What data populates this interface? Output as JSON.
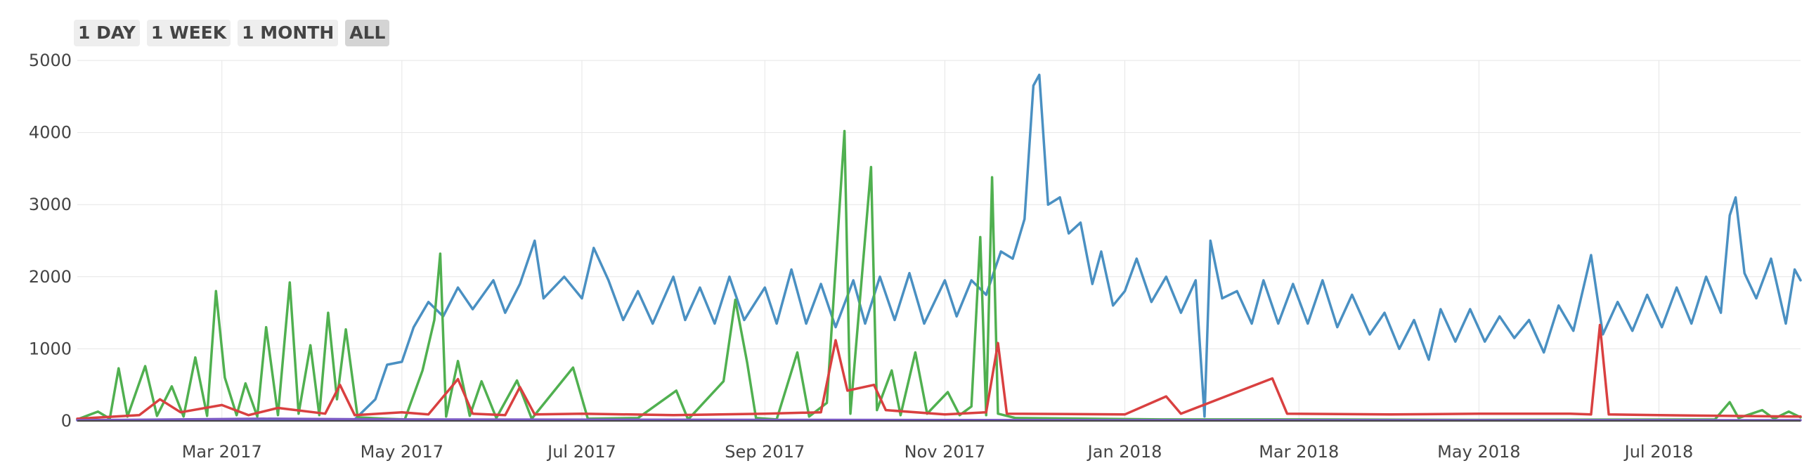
{
  "range_selector": {
    "buttons": [
      {
        "label": "1 DAY",
        "active": false
      },
      {
        "label": "1 WEEK",
        "active": false
      },
      {
        "label": "1 MONTH",
        "active": false
      },
      {
        "label": "ALL",
        "active": true
      }
    ]
  },
  "chart_data": {
    "type": "line",
    "title": "",
    "xlabel": "",
    "ylabel": "",
    "grid": true,
    "legend": "none",
    "x_range": [
      "2017-01-11",
      "2018-08-18"
    ],
    "ylim": [
      0,
      5000
    ],
    "yticks": [
      0,
      1000,
      2000,
      3000,
      4000,
      5000
    ],
    "xticks": [
      {
        "date": "2017-03-01",
        "label": "Mar 2017"
      },
      {
        "date": "2017-05-01",
        "label": "May 2017"
      },
      {
        "date": "2017-07-01",
        "label": "Jul 2017"
      },
      {
        "date": "2017-09-01",
        "label": "Sep 2017"
      },
      {
        "date": "2017-11-01",
        "label": "Nov 2017"
      },
      {
        "date": "2018-01-01",
        "label": "Jan 2018"
      },
      {
        "date": "2018-03-01",
        "label": "Mar 2018"
      },
      {
        "date": "2018-05-01",
        "label": "May 2018"
      },
      {
        "date": "2018-07-01",
        "label": "Jul 2018"
      }
    ],
    "series": [
      {
        "color": "#4a90c2",
        "points": [
          [
            "2017-01-11",
            10
          ],
          [
            "2017-03-01",
            15
          ],
          [
            "2017-04-15",
            20
          ],
          [
            "2017-04-22",
            300
          ],
          [
            "2017-04-26",
            780
          ],
          [
            "2017-05-01",
            820
          ],
          [
            "2017-05-05",
            1300
          ],
          [
            "2017-05-10",
            1650
          ],
          [
            "2017-05-15",
            1450
          ],
          [
            "2017-05-20",
            1850
          ],
          [
            "2017-05-25",
            1550
          ],
          [
            "2017-06-01",
            1950
          ],
          [
            "2017-06-05",
            1500
          ],
          [
            "2017-06-10",
            1900
          ],
          [
            "2017-06-15",
            2500
          ],
          [
            "2017-06-18",
            1700
          ],
          [
            "2017-06-25",
            2000
          ],
          [
            "2017-07-01",
            1700
          ],
          [
            "2017-07-05",
            2400
          ],
          [
            "2017-07-10",
            1950
          ],
          [
            "2017-07-15",
            1400
          ],
          [
            "2017-07-20",
            1800
          ],
          [
            "2017-07-25",
            1350
          ],
          [
            "2017-08-01",
            2000
          ],
          [
            "2017-08-05",
            1400
          ],
          [
            "2017-08-10",
            1850
          ],
          [
            "2017-08-15",
            1350
          ],
          [
            "2017-08-20",
            2000
          ],
          [
            "2017-08-25",
            1400
          ],
          [
            "2017-09-01",
            1850
          ],
          [
            "2017-09-05",
            1350
          ],
          [
            "2017-09-10",
            2100
          ],
          [
            "2017-09-15",
            1350
          ],
          [
            "2017-09-20",
            1900
          ],
          [
            "2017-09-25",
            1300
          ],
          [
            "2017-10-01",
            1950
          ],
          [
            "2017-10-05",
            1350
          ],
          [
            "2017-10-10",
            2000
          ],
          [
            "2017-10-15",
            1400
          ],
          [
            "2017-10-20",
            2050
          ],
          [
            "2017-10-25",
            1350
          ],
          [
            "2017-11-01",
            1950
          ],
          [
            "2017-11-05",
            1450
          ],
          [
            "2017-11-10",
            1950
          ],
          [
            "2017-11-15",
            1750
          ],
          [
            "2017-11-20",
            2350
          ],
          [
            "2017-11-24",
            2250
          ],
          [
            "2017-11-28",
            2800
          ],
          [
            "2017-12-01",
            4650
          ],
          [
            "2017-12-03",
            4800
          ],
          [
            "2017-12-06",
            3000
          ],
          [
            "2017-12-10",
            3100
          ],
          [
            "2017-12-13",
            2600
          ],
          [
            "2017-12-17",
            2750
          ],
          [
            "2017-12-21",
            1900
          ],
          [
            "2017-12-24",
            2350
          ],
          [
            "2017-12-28",
            1600
          ],
          [
            "2018-01-01",
            1800
          ],
          [
            "2018-01-05",
            2250
          ],
          [
            "2018-01-10",
            1650
          ],
          [
            "2018-01-15",
            2000
          ],
          [
            "2018-01-20",
            1500
          ],
          [
            "2018-01-25",
            1950
          ],
          [
            "2018-01-28",
            60
          ],
          [
            "2018-01-30",
            2500
          ],
          [
            "2018-02-03",
            1700
          ],
          [
            "2018-02-08",
            1800
          ],
          [
            "2018-02-13",
            1350
          ],
          [
            "2018-02-17",
            1950
          ],
          [
            "2018-02-22",
            1350
          ],
          [
            "2018-02-27",
            1900
          ],
          [
            "2018-03-04",
            1350
          ],
          [
            "2018-03-09",
            1950
          ],
          [
            "2018-03-14",
            1300
          ],
          [
            "2018-03-19",
            1750
          ],
          [
            "2018-03-25",
            1200
          ],
          [
            "2018-03-30",
            1500
          ],
          [
            "2018-04-04",
            1000
          ],
          [
            "2018-04-09",
            1400
          ],
          [
            "2018-04-14",
            850
          ],
          [
            "2018-04-18",
            1550
          ],
          [
            "2018-04-23",
            1100
          ],
          [
            "2018-04-28",
            1550
          ],
          [
            "2018-05-03",
            1100
          ],
          [
            "2018-05-08",
            1450
          ],
          [
            "2018-05-13",
            1150
          ],
          [
            "2018-05-18",
            1400
          ],
          [
            "2018-05-23",
            950
          ],
          [
            "2018-05-28",
            1600
          ],
          [
            "2018-06-02",
            1250
          ],
          [
            "2018-06-08",
            2300
          ],
          [
            "2018-06-12",
            1200
          ],
          [
            "2018-06-17",
            1650
          ],
          [
            "2018-06-22",
            1250
          ],
          [
            "2018-06-27",
            1750
          ],
          [
            "2018-07-02",
            1300
          ],
          [
            "2018-07-07",
            1850
          ],
          [
            "2018-07-12",
            1350
          ],
          [
            "2018-07-17",
            2000
          ],
          [
            "2018-07-22",
            1500
          ],
          [
            "2018-07-25",
            2850
          ],
          [
            "2018-07-27",
            3100
          ],
          [
            "2018-07-30",
            2050
          ],
          [
            "2018-08-03",
            1700
          ],
          [
            "2018-08-08",
            2250
          ],
          [
            "2018-08-13",
            1350
          ],
          [
            "2018-08-16",
            2100
          ],
          [
            "2018-08-18",
            1950
          ]
        ]
      },
      {
        "color": "#50b050",
        "points": [
          [
            "2017-01-11",
            20
          ],
          [
            "2017-01-18",
            130
          ],
          [
            "2017-01-22",
            30
          ],
          [
            "2017-01-25",
            730
          ],
          [
            "2017-01-28",
            60
          ],
          [
            "2017-02-03",
            760
          ],
          [
            "2017-02-07",
            70
          ],
          [
            "2017-02-12",
            480
          ],
          [
            "2017-02-16",
            60
          ],
          [
            "2017-02-20",
            880
          ],
          [
            "2017-02-24",
            70
          ],
          [
            "2017-02-27",
            1800
          ],
          [
            "2017-03-02",
            600
          ],
          [
            "2017-03-06",
            80
          ],
          [
            "2017-03-09",
            520
          ],
          [
            "2017-03-13",
            60
          ],
          [
            "2017-03-16",
            1300
          ],
          [
            "2017-03-20",
            80
          ],
          [
            "2017-03-24",
            1920
          ],
          [
            "2017-03-27",
            100
          ],
          [
            "2017-03-31",
            1050
          ],
          [
            "2017-04-03",
            80
          ],
          [
            "2017-04-06",
            1500
          ],
          [
            "2017-04-09",
            300
          ],
          [
            "2017-04-12",
            1270
          ],
          [
            "2017-04-16",
            50
          ],
          [
            "2017-04-25",
            30
          ],
          [
            "2017-05-02",
            20
          ],
          [
            "2017-05-08",
            700
          ],
          [
            "2017-05-12",
            1400
          ],
          [
            "2017-05-14",
            2320
          ],
          [
            "2017-05-16",
            60
          ],
          [
            "2017-05-20",
            830
          ],
          [
            "2017-05-24",
            70
          ],
          [
            "2017-05-28",
            550
          ],
          [
            "2017-06-02",
            40
          ],
          [
            "2017-06-09",
            560
          ],
          [
            "2017-06-14",
            30
          ],
          [
            "2017-06-28",
            740
          ],
          [
            "2017-07-03",
            30
          ],
          [
            "2017-07-20",
            40
          ],
          [
            "2017-08-02",
            420
          ],
          [
            "2017-08-06",
            20
          ],
          [
            "2017-08-18",
            550
          ],
          [
            "2017-08-22",
            1680
          ],
          [
            "2017-08-26",
            810
          ],
          [
            "2017-08-29",
            40
          ],
          [
            "2017-09-05",
            20
          ],
          [
            "2017-09-12",
            950
          ],
          [
            "2017-09-16",
            60
          ],
          [
            "2017-09-22",
            250
          ],
          [
            "2017-09-28",
            4020
          ],
          [
            "2017-09-30",
            100
          ],
          [
            "2017-10-07",
            3520
          ],
          [
            "2017-10-09",
            150
          ],
          [
            "2017-10-14",
            700
          ],
          [
            "2017-10-17",
            80
          ],
          [
            "2017-10-22",
            950
          ],
          [
            "2017-10-26",
            100
          ],
          [
            "2017-11-02",
            400
          ],
          [
            "2017-11-06",
            80
          ],
          [
            "2017-11-10",
            200
          ],
          [
            "2017-11-13",
            2550
          ],
          [
            "2017-11-15",
            80
          ],
          [
            "2017-11-17",
            3380
          ],
          [
            "2017-11-19",
            100
          ],
          [
            "2017-11-25",
            40
          ],
          [
            "2018-01-15",
            20
          ],
          [
            "2018-03-01",
            20
          ],
          [
            "2018-05-01",
            15
          ],
          [
            "2018-07-20",
            20
          ],
          [
            "2018-07-25",
            260
          ],
          [
            "2018-07-28",
            40
          ],
          [
            "2018-08-05",
            150
          ],
          [
            "2018-08-09",
            30
          ],
          [
            "2018-08-14",
            130
          ],
          [
            "2018-08-18",
            50
          ]
        ]
      },
      {
        "color": "#d94040",
        "points": [
          [
            "2017-01-11",
            30
          ],
          [
            "2017-02-01",
            80
          ],
          [
            "2017-02-08",
            300
          ],
          [
            "2017-02-15",
            120
          ],
          [
            "2017-03-01",
            220
          ],
          [
            "2017-03-10",
            80
          ],
          [
            "2017-03-20",
            180
          ],
          [
            "2017-04-05",
            100
          ],
          [
            "2017-04-10",
            500
          ],
          [
            "2017-04-15",
            80
          ],
          [
            "2017-05-01",
            120
          ],
          [
            "2017-05-10",
            90
          ],
          [
            "2017-05-20",
            580
          ],
          [
            "2017-05-25",
            100
          ],
          [
            "2017-06-05",
            80
          ],
          [
            "2017-06-10",
            470
          ],
          [
            "2017-06-15",
            90
          ],
          [
            "2017-07-01",
            100
          ],
          [
            "2017-08-01",
            80
          ],
          [
            "2017-09-01",
            100
          ],
          [
            "2017-09-20",
            120
          ],
          [
            "2017-09-25",
            1120
          ],
          [
            "2017-09-29",
            420
          ],
          [
            "2017-10-08",
            500
          ],
          [
            "2017-10-12",
            150
          ],
          [
            "2017-11-01",
            90
          ],
          [
            "2017-11-15",
            120
          ],
          [
            "2017-11-19",
            1080
          ],
          [
            "2017-11-22",
            100
          ],
          [
            "2018-01-01",
            90
          ],
          [
            "2018-01-15",
            340
          ],
          [
            "2018-01-20",
            100
          ],
          [
            "2018-02-20",
            590
          ],
          [
            "2018-02-25",
            100
          ],
          [
            "2018-04-01",
            90
          ],
          [
            "2018-05-01",
            100
          ],
          [
            "2018-06-01",
            100
          ],
          [
            "2018-06-08",
            90
          ],
          [
            "2018-06-11",
            1330
          ],
          [
            "2018-06-14",
            90
          ],
          [
            "2018-07-01",
            80
          ],
          [
            "2018-08-18",
            60
          ]
        ]
      },
      {
        "color": "#7c5cc4",
        "points": [
          [
            "2017-01-11",
            10
          ],
          [
            "2017-03-15",
            30
          ],
          [
            "2017-05-01",
            20
          ],
          [
            "2017-09-01",
            15
          ],
          [
            "2018-01-01",
            10
          ],
          [
            "2018-08-18",
            10
          ]
        ]
      }
    ]
  }
}
